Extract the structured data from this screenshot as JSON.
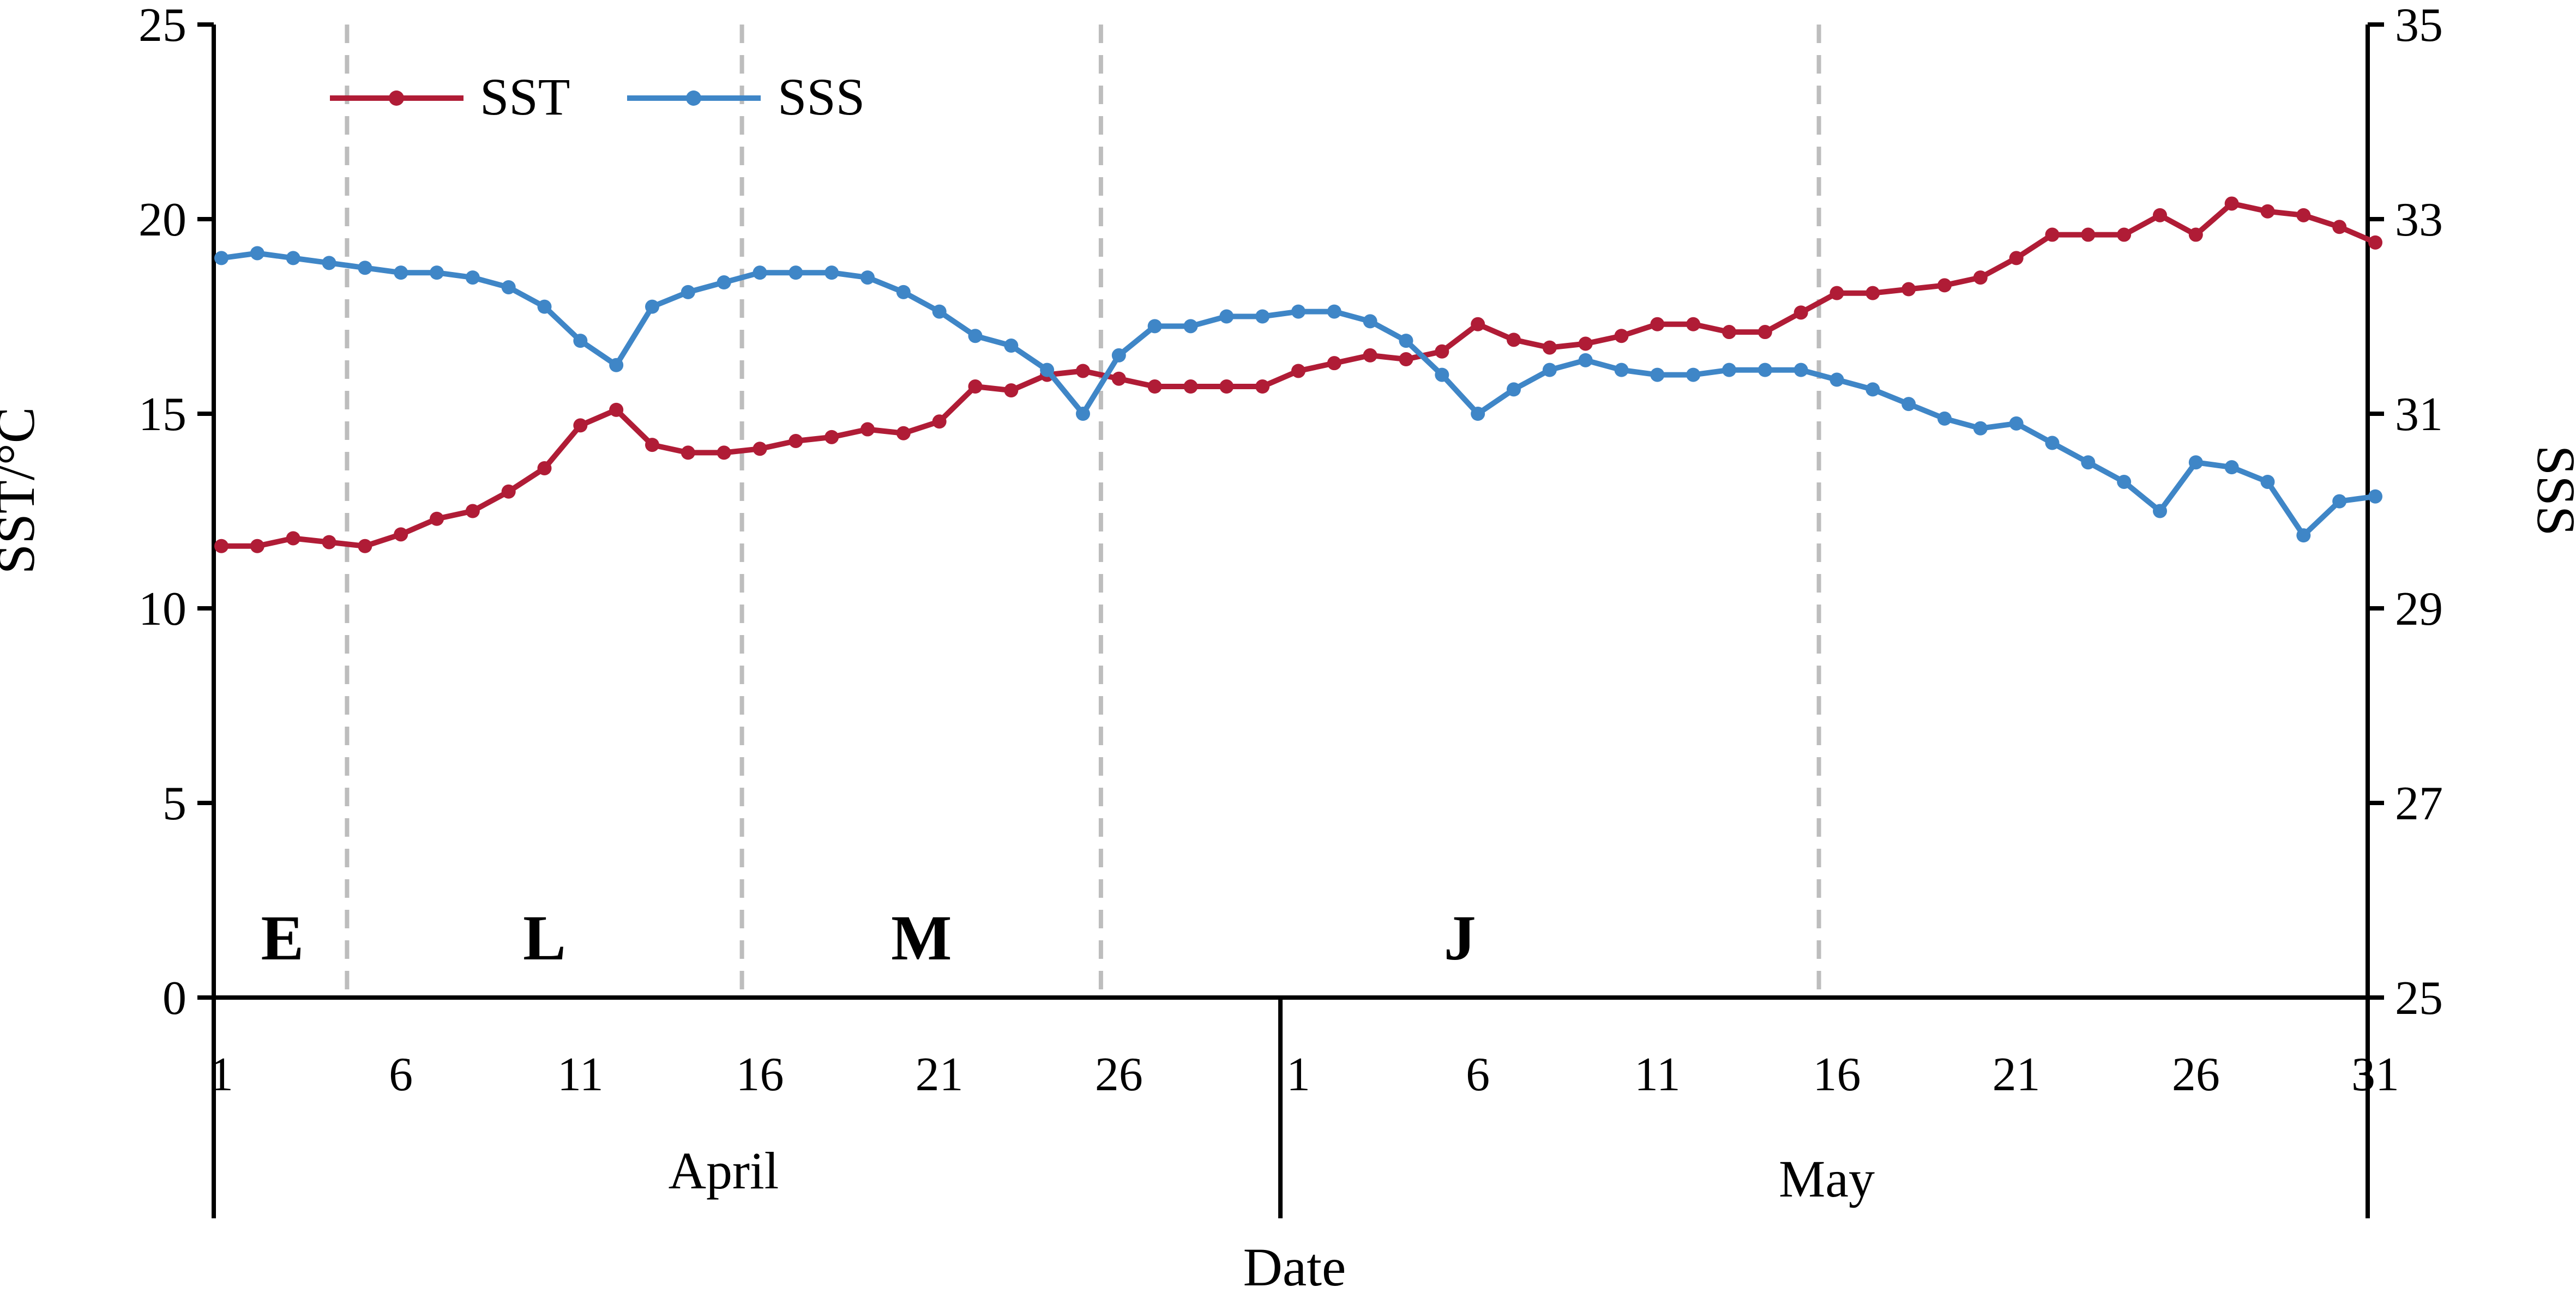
{
  "chart_data": {
    "type": "line",
    "xlabel": "Date",
    "ylabel_left": "SST/°C",
    "ylabel_right": "SSS",
    "ylim_left": [
      0,
      25
    ],
    "yticks_left": [
      0,
      5,
      10,
      15,
      20,
      25
    ],
    "ylim_right": [
      25,
      35
    ],
    "yticks_right": [
      25,
      27,
      29,
      31,
      33,
      35
    ],
    "grid": false,
    "legend_position": "top-left",
    "months": [
      {
        "name": "April",
        "days": 30
      },
      {
        "name": "May",
        "days": 31
      }
    ],
    "x_tick_labels": [
      "1",
      "6",
      "11",
      "16",
      "21",
      "26",
      "1",
      "6",
      "11",
      "16",
      "21",
      "26",
      "31"
    ],
    "x_tick_days": [
      1,
      6,
      11,
      16,
      21,
      26,
      31,
      36,
      41,
      46,
      51,
      56,
      61
    ],
    "phase_boundaries_day": [
      4.5,
      15.5,
      25.5,
      45.5
    ],
    "phases": [
      {
        "label": "E",
        "center_day": 2.7
      },
      {
        "label": "L",
        "center_day": 10
      },
      {
        "label": "M",
        "center_day": 20.5
      },
      {
        "label": "J",
        "center_day": 35.5
      }
    ],
    "colors": {
      "SST": "#b01c36",
      "SSS": "#3f86c7",
      "phase_lines": "#bdbdbd"
    },
    "series": [
      {
        "name": "SST",
        "axis": "left",
        "values": [
          11.6,
          11.6,
          11.8,
          11.7,
          11.6,
          11.9,
          12.3,
          12.5,
          13.0,
          13.6,
          14.7,
          15.1,
          14.2,
          14.0,
          14.0,
          14.1,
          14.3,
          14.4,
          14.6,
          14.5,
          14.8,
          15.7,
          15.6,
          16.0,
          16.1,
          15.9,
          15.7,
          15.7,
          15.7,
          15.7,
          16.1,
          16.3,
          16.5,
          16.4,
          16.6,
          17.3,
          16.9,
          16.7,
          16.8,
          17.0,
          17.3,
          17.3,
          17.1,
          17.1,
          17.6,
          18.1,
          18.1,
          18.2,
          18.3,
          18.5,
          19.0,
          19.6,
          19.6,
          19.6,
          20.1,
          19.6,
          20.4,
          20.2,
          20.1,
          19.8,
          19.4
        ]
      },
      {
        "name": "SSS",
        "axis": "right",
        "values": [
          32.6,
          32.65,
          32.6,
          32.55,
          32.5,
          32.45,
          32.45,
          32.4,
          32.3,
          32.1,
          31.75,
          31.5,
          32.1,
          32.25,
          32.35,
          32.45,
          32.45,
          32.45,
          32.4,
          32.25,
          32.05,
          31.8,
          31.7,
          31.45,
          31.0,
          31.6,
          31.9,
          31.9,
          32.0,
          32.0,
          32.05,
          32.05,
          31.95,
          31.75,
          31.4,
          31.0,
          31.25,
          31.45,
          31.55,
          31.45,
          31.4,
          31.4,
          31.45,
          31.45,
          31.45,
          31.35,
          31.25,
          31.1,
          30.95,
          30.85,
          30.9,
          30.7,
          30.5,
          30.3,
          30.0,
          30.5,
          30.45,
          30.3,
          29.75,
          30.1,
          30.15
        ]
      }
    ]
  }
}
